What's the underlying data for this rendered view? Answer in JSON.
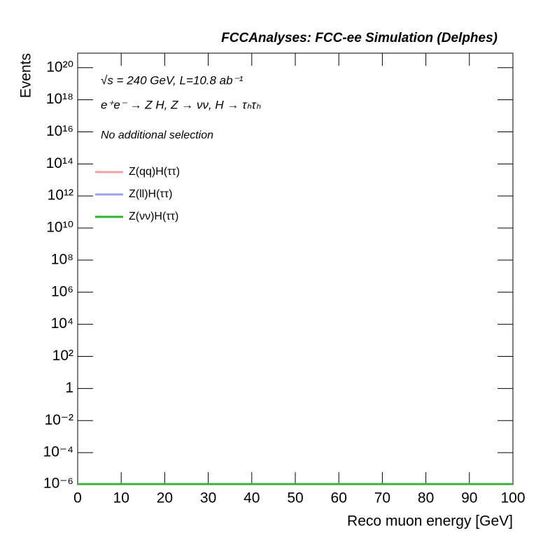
{
  "chart_data": {
    "type": "line",
    "title": "FCCAnalyses: FCC-ee Simulation (Delphes)",
    "xlabel": "Reco muon energy [GeV]",
    "ylabel": "Events",
    "annotations": [
      "√s = 240 GeV, L=10.8 ab⁻¹",
      "e⁺e⁻ → Z H, Z → νν, H → τₕτₕ",
      "No additional selection"
    ],
    "x": [
      0,
      100
    ],
    "series": [
      {
        "name": "Z(qq)H(ττ)",
        "color": "#f4a0a0",
        "values": [
          0,
          0
        ]
      },
      {
        "name": "Z(ll)H(ττ)",
        "color": "#9aa0f4",
        "values": [
          0,
          0
        ]
      },
      {
        "name": "Z(νν)H(ττ)",
        "color": "#22bb22",
        "values": [
          0,
          0
        ]
      }
    ],
    "xlim": [
      0,
      100
    ],
    "xticks": [
      0,
      10,
      20,
      30,
      40,
      50,
      60,
      70,
      80,
      90,
      100
    ],
    "ylog": true,
    "ylim": [
      1e-06,
      8e+20
    ],
    "yticks": [
      {
        "value": 1e-06,
        "label": "10⁻⁶"
      },
      {
        "value": 0.0001,
        "label": "10⁻⁴"
      },
      {
        "value": 0.01,
        "label": "10⁻²"
      },
      1,
      {
        "value": 100,
        "label": "10²"
      },
      {
        "value": 10000,
        "label": "10⁴"
      },
      {
        "value": 1000000.0,
        "label": "10⁶"
      },
      {
        "value": 100000000.0,
        "label": "10⁸"
      },
      {
        "value": 10000000000.0,
        "label": "10¹⁰"
      },
      {
        "value": 1000000000000.0,
        "label": "10¹²"
      },
      {
        "value": 100000000000000.0,
        "label": "10¹⁴"
      },
      {
        "value": 1e+16,
        "label": "10¹⁶"
      },
      {
        "value": 1e+18,
        "label": "10¹⁸"
      },
      {
        "value": 1e+20,
        "label": "10²⁰"
      }
    ],
    "legend": "upper left"
  }
}
